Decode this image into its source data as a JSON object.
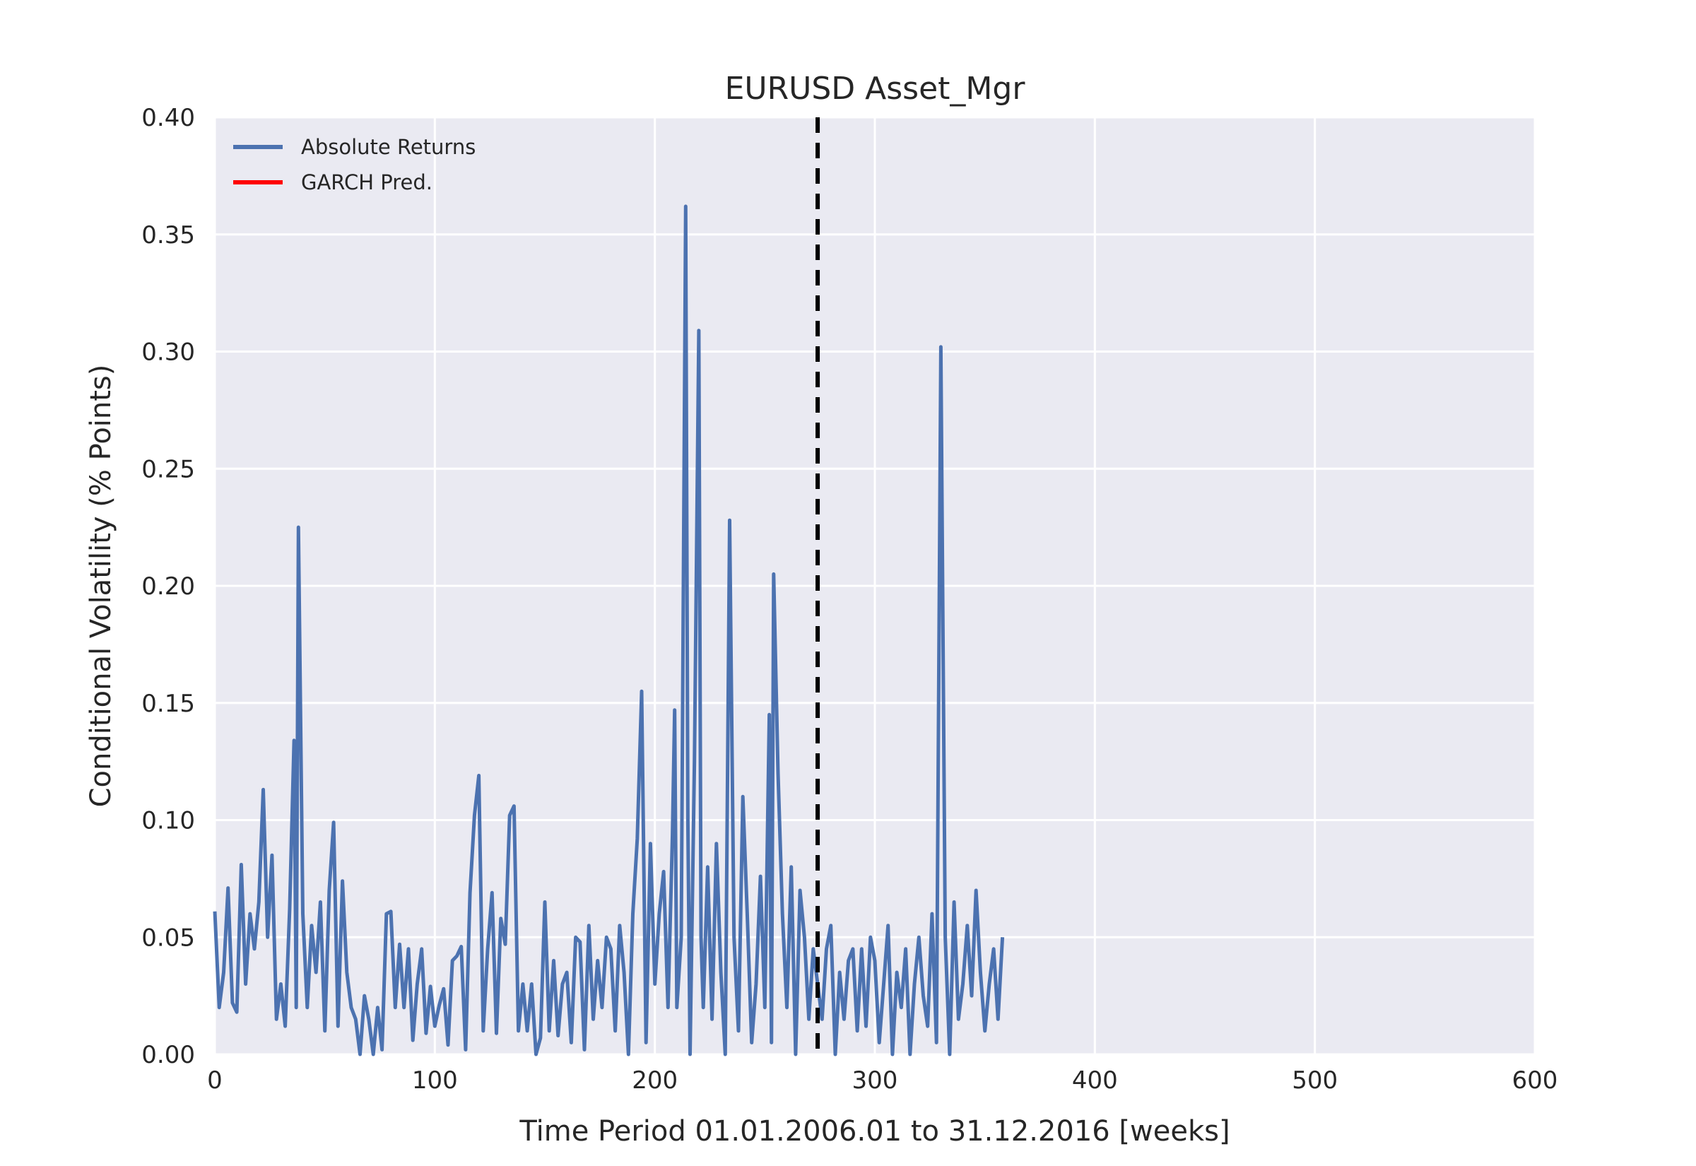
{
  "chart_data": {
    "type": "line",
    "title": "EURUSD Asset_Mgr",
    "xlabel": "Time Period 01.01.2006.01 to 31.12.2016 [weeks]",
    "ylabel": "Conditional Volatility (% Points)",
    "xlim": [
      0,
      600
    ],
    "ylim": [
      0,
      0.4
    ],
    "xticks": [
      0,
      100,
      200,
      300,
      400,
      500,
      600
    ],
    "xtick_labels": [
      "0",
      "100",
      "200",
      "300",
      "400",
      "500",
      "600"
    ],
    "yticks": [
      0,
      0.05,
      0.1,
      0.15,
      0.2,
      0.25,
      0.3,
      0.35,
      0.4
    ],
    "ytick_labels": [
      "0.00",
      "0.05",
      "0.10",
      "0.15",
      "0.20",
      "0.25",
      "0.30",
      "0.35",
      "0.40"
    ],
    "grid": true,
    "legend_position": "top-left",
    "vertical_line": {
      "x": 274,
      "style": "dashed",
      "color": "#000000"
    },
    "series": [
      {
        "name": "Absolute Returns",
        "color": "#4c72b0",
        "points": [
          [
            0,
            0.061
          ],
          [
            2,
            0.02
          ],
          [
            4,
            0.035
          ],
          [
            6,
            0.071
          ],
          [
            8,
            0.022
          ],
          [
            10,
            0.018
          ],
          [
            12,
            0.081
          ],
          [
            14,
            0.03
          ],
          [
            16,
            0.06
          ],
          [
            18,
            0.045
          ],
          [
            20,
            0.065
          ],
          [
            22,
            0.113
          ],
          [
            24,
            0.05
          ],
          [
            26,
            0.085
          ],
          [
            28,
            0.015
          ],
          [
            30,
            0.03
          ],
          [
            32,
            0.012
          ],
          [
            34,
            0.062
          ],
          [
            36,
            0.134
          ],
          [
            37,
            0.02
          ],
          [
            38,
            0.225
          ],
          [
            40,
            0.06
          ],
          [
            42,
            0.02
          ],
          [
            44,
            0.055
          ],
          [
            46,
            0.035
          ],
          [
            48,
            0.065
          ],
          [
            50,
            0.01
          ],
          [
            52,
            0.07
          ],
          [
            54,
            0.099
          ],
          [
            56,
            0.012
          ],
          [
            58,
            0.074
          ],
          [
            60,
            0.035
          ],
          [
            62,
            0.02
          ],
          [
            64,
            0.015
          ],
          [
            66,
            0.0
          ],
          [
            68,
            0.025
          ],
          [
            70,
            0.015
          ],
          [
            72,
            0.0
          ],
          [
            74,
            0.02
          ],
          [
            76,
            0.002
          ],
          [
            78,
            0.06
          ],
          [
            80,
            0.061
          ],
          [
            82,
            0.02
          ],
          [
            84,
            0.047
          ],
          [
            86,
            0.02
          ],
          [
            88,
            0.045
          ],
          [
            90,
            0.006
          ],
          [
            92,
            0.03
          ],
          [
            94,
            0.045
          ],
          [
            96,
            0.009
          ],
          [
            98,
            0.029
          ],
          [
            100,
            0.012
          ],
          [
            102,
            0.021
          ],
          [
            104,
            0.028
          ],
          [
            106,
            0.004
          ],
          [
            108,
            0.04
          ],
          [
            110,
            0.042
          ],
          [
            112,
            0.046
          ],
          [
            114,
            0.002
          ],
          [
            116,
            0.069
          ],
          [
            118,
            0.102
          ],
          [
            120,
            0.119
          ],
          [
            122,
            0.01
          ],
          [
            124,
            0.045
          ],
          [
            126,
            0.069
          ],
          [
            128,
            0.009
          ],
          [
            130,
            0.058
          ],
          [
            132,
            0.047
          ],
          [
            134,
            0.102
          ],
          [
            136,
            0.106
          ],
          [
            138,
            0.01
          ],
          [
            140,
            0.03
          ],
          [
            142,
            0.01
          ],
          [
            144,
            0.03
          ],
          [
            146,
            0.0
          ],
          [
            148,
            0.007
          ],
          [
            150,
            0.065
          ],
          [
            152,
            0.01
          ],
          [
            154,
            0.04
          ],
          [
            156,
            0.008
          ],
          [
            158,
            0.03
          ],
          [
            160,
            0.035
          ],
          [
            162,
            0.005
          ],
          [
            164,
            0.05
          ],
          [
            166,
            0.048
          ],
          [
            168,
            0.002
          ],
          [
            170,
            0.055
          ],
          [
            172,
            0.015
          ],
          [
            174,
            0.04
          ],
          [
            176,
            0.02
          ],
          [
            178,
            0.05
          ],
          [
            180,
            0.045
          ],
          [
            182,
            0.01
          ],
          [
            184,
            0.055
          ],
          [
            186,
            0.035
          ],
          [
            188,
            0.0
          ],
          [
            190,
            0.06
          ],
          [
            192,
            0.092
          ],
          [
            194,
            0.155
          ],
          [
            196,
            0.005
          ],
          [
            198,
            0.09
          ],
          [
            200,
            0.03
          ],
          [
            202,
            0.06
          ],
          [
            204,
            0.078
          ],
          [
            206,
            0.02
          ],
          [
            208,
            0.094
          ],
          [
            209,
            0.147
          ],
          [
            210,
            0.02
          ],
          [
            212,
            0.05
          ],
          [
            214,
            0.362
          ],
          [
            215,
            0.1
          ],
          [
            216,
            0.0
          ],
          [
            218,
            0.125
          ],
          [
            220,
            0.309
          ],
          [
            221,
            0.05
          ],
          [
            222,
            0.02
          ],
          [
            224,
            0.08
          ],
          [
            226,
            0.015
          ],
          [
            228,
            0.09
          ],
          [
            230,
            0.035
          ],
          [
            232,
            0.0
          ],
          [
            234,
            0.228
          ],
          [
            236,
            0.05
          ],
          [
            238,
            0.01
          ],
          [
            240,
            0.11
          ],
          [
            242,
            0.06
          ],
          [
            244,
            0.005
          ],
          [
            246,
            0.03
          ],
          [
            248,
            0.076
          ],
          [
            250,
            0.02
          ],
          [
            252,
            0.145
          ],
          [
            253,
            0.005
          ],
          [
            254,
            0.205
          ],
          [
            256,
            0.12
          ],
          [
            258,
            0.06
          ],
          [
            260,
            0.02
          ],
          [
            262,
            0.08
          ],
          [
            264,
            0.0
          ],
          [
            266,
            0.07
          ],
          [
            268,
            0.05
          ],
          [
            270,
            0.015
          ],
          [
            272,
            0.045
          ],
          [
            274,
            0.03
          ],
          [
            276,
            0.015
          ],
          [
            278,
            0.045
          ],
          [
            280,
            0.055
          ],
          [
            282,
            0.0
          ],
          [
            284,
            0.035
          ],
          [
            286,
            0.015
          ],
          [
            288,
            0.04
          ],
          [
            290,
            0.045
          ],
          [
            292,
            0.01
          ],
          [
            294,
            0.045
          ],
          [
            296,
            0.012
          ],
          [
            298,
            0.05
          ],
          [
            300,
            0.04
          ],
          [
            302,
            0.005
          ],
          [
            304,
            0.03
          ],
          [
            306,
            0.055
          ],
          [
            308,
            0.0
          ],
          [
            310,
            0.035
          ],
          [
            312,
            0.02
          ],
          [
            314,
            0.045
          ],
          [
            316,
            0.0
          ],
          [
            318,
            0.03
          ],
          [
            320,
            0.05
          ],
          [
            322,
            0.025
          ],
          [
            324,
            0.012
          ],
          [
            326,
            0.06
          ],
          [
            328,
            0.005
          ],
          [
            330,
            0.302
          ],
          [
            332,
            0.05
          ],
          [
            334,
            0.0
          ],
          [
            336,
            0.065
          ],
          [
            338,
            0.015
          ],
          [
            340,
            0.03
          ],
          [
            342,
            0.055
          ],
          [
            344,
            0.025
          ],
          [
            346,
            0.07
          ],
          [
            348,
            0.035
          ],
          [
            350,
            0.01
          ],
          [
            352,
            0.03
          ],
          [
            354,
            0.045
          ],
          [
            356,
            0.015
          ],
          [
            358,
            0.05
          ]
        ]
      },
      {
        "name": "GARCH Pred.",
        "color": "#ff0000",
        "points": []
      }
    ]
  }
}
